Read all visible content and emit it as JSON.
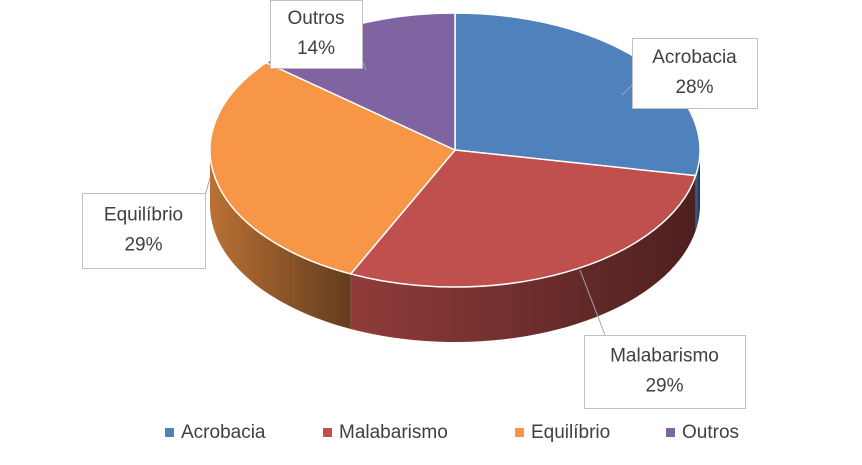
{
  "chart_data": {
    "type": "pie3d",
    "categories": [
      "Acrobacia",
      "Malabarismo",
      "Equilíbrio",
      "Outros"
    ],
    "values": [
      28,
      29,
      29,
      14
    ],
    "value_labels": [
      "28%",
      "29%",
      "29%",
      "14%"
    ],
    "colors": [
      "#4f81bd",
      "#c0504d",
      "#f79646",
      "#8064a2"
    ],
    "legend": "bottom"
  }
}
